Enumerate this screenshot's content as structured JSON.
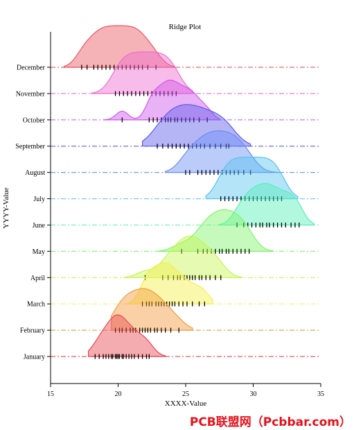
{
  "chart_data": {
    "type": "ridge",
    "title": "Ridge Plot",
    "xlabel": "XXXX-Value",
    "ylabel": "YYYY-Value",
    "xlim": [
      15,
      35
    ],
    "xticks": [
      15,
      20,
      25,
      30,
      35
    ],
    "categories": [
      "January",
      "February",
      "March",
      "April",
      "May",
      "June",
      "July",
      "August",
      "September",
      "October",
      "November",
      "December"
    ],
    "series": [
      {
        "name": "January",
        "color": "#e8474f",
        "mean": 20.0,
        "sd": 1.0,
        "range": [
          17.8,
          23.5
        ],
        "rug": [
          18.3,
          18.6,
          18.9,
          19.1,
          19.3,
          19.5,
          19.6,
          19.8,
          19.9,
          20.0,
          20.1,
          20.3,
          20.4,
          20.6,
          20.8,
          21.0,
          21.2,
          21.5,
          21.8,
          22.1,
          22.3
        ]
      },
      {
        "name": "February",
        "color": "#f39a3c",
        "mean": 22.0,
        "sd": 1.2,
        "range": [
          19.5,
          25.5
        ],
        "rug": [
          19.8,
          20.1,
          20.3,
          20.6,
          20.9,
          21.1,
          21.3,
          21.6,
          21.8,
          22.0,
          22.2,
          22.4,
          22.7,
          22.9,
          23.2,
          23.5,
          23.9,
          24.5
        ]
      },
      {
        "name": "March",
        "color": "#f5f04a",
        "mean": 23.5,
        "sd": 0.9,
        "range": [
          20.8,
          27.0
        ],
        "rug": [
          21.8,
          22.1,
          22.3,
          22.5,
          22.8,
          23.0,
          23.2,
          23.4,
          23.6,
          23.8,
          24.0,
          24.2,
          24.5,
          24.8,
          25.1,
          25.5,
          26.0,
          26.4
        ]
      },
      {
        "name": "April",
        "color": "#c8f553",
        "mean": 25.2,
        "sd": 1.2,
        "range": [
          20.5,
          29.2
        ],
        "rug": [
          22.0,
          23.3,
          23.7,
          24.1,
          24.4,
          24.6,
          24.9,
          25.1,
          25.3,
          25.5,
          25.7,
          26.0,
          26.2,
          26.5,
          26.8,
          27.2,
          27.6
        ]
      },
      {
        "name": "May",
        "color": "#7ef56b",
        "mean": 28.0,
        "sd": 1.3,
        "range": [
          23.0,
          31.5
        ],
        "rug": [
          24.7,
          25.9,
          26.3,
          26.6,
          26.9,
          27.2,
          27.5,
          27.7,
          28.0,
          28.2,
          28.5,
          28.8,
          29.1,
          29.4,
          29.7
        ]
      },
      {
        "name": "June",
        "color": "#55f0b9",
        "mean": 31.0,
        "sd": 1.0,
        "range": [
          27.5,
          34.5
        ],
        "rug": [
          28.8,
          29.3,
          29.6,
          29.9,
          30.2,
          30.5,
          30.7,
          31.0,
          31.2,
          31.5,
          31.8,
          32.1,
          32.4,
          32.8,
          33.1,
          33.4
        ]
      },
      {
        "name": "July",
        "color": "#56c3f0",
        "mean": 30.0,
        "sd": 1.2,
        "range": [
          26.5,
          33.3
        ],
        "rug": [
          27.6,
          27.9,
          28.2,
          28.5,
          28.8,
          29.1,
          29.4,
          29.7,
          30.0,
          30.3,
          30.6,
          30.9,
          31.2,
          31.5,
          31.8,
          32.1
        ]
      },
      {
        "name": "August",
        "color": "#6a8df5",
        "mean": 27.3,
        "sd": 1.3,
        "range": [
          23.5,
          32.0
        ],
        "rug": [
          25.0,
          25.3,
          25.9,
          26.2,
          26.5,
          26.8,
          27.1,
          27.4,
          27.7,
          28.0,
          28.3,
          28.6,
          28.9,
          29.3,
          29.8
        ]
      },
      {
        "name": "September",
        "color": "#5a5aec",
        "mean": 25.5,
        "sd": 1.6,
        "range": [
          21.8,
          29.8
        ],
        "rug": [
          22.9,
          23.3,
          23.7,
          24.0,
          24.3,
          24.6,
          24.9,
          25.2,
          25.5,
          25.8,
          26.1,
          26.4,
          26.8,
          27.2,
          27.6,
          28.0,
          28.2
        ]
      },
      {
        "name": "October",
        "color": "#d055ec",
        "mean": 24.0,
        "sd": 0.7,
        "range": [
          19.0,
          27.5
        ],
        "rug": [
          20.3,
          22.3,
          22.6,
          22.9,
          23.2,
          23.5,
          23.7,
          23.9,
          24.2,
          24.4,
          24.7,
          25.0,
          25.3,
          25.6,
          26.0,
          26.6
        ]
      },
      {
        "name": "November",
        "color": "#f06bd0",
        "mean": 21.8,
        "sd": 1.3,
        "range": [
          18.0,
          25.5
        ],
        "rug": [
          19.8,
          20.1,
          20.4,
          20.7,
          21.0,
          21.3,
          21.6,
          21.9,
          22.2,
          22.5,
          22.8,
          23.1,
          23.4,
          23.7,
          24.0,
          24.3
        ]
      },
      {
        "name": "December",
        "color": "#e85560",
        "mean": 20.0,
        "sd": 1.1,
        "range": [
          16.0,
          24.2
        ],
        "rug": [
          17.3,
          17.7,
          18.2,
          18.5,
          18.8,
          19.1,
          19.4,
          19.7,
          20.0,
          20.3,
          20.6,
          20.9,
          21.2,
          21.5,
          21.8,
          22.2,
          22.8
        ]
      }
    ],
    "grid": false,
    "baseline_style": "dash-dot"
  },
  "watermark": "PCB联盟网（Pcbbar.com）"
}
